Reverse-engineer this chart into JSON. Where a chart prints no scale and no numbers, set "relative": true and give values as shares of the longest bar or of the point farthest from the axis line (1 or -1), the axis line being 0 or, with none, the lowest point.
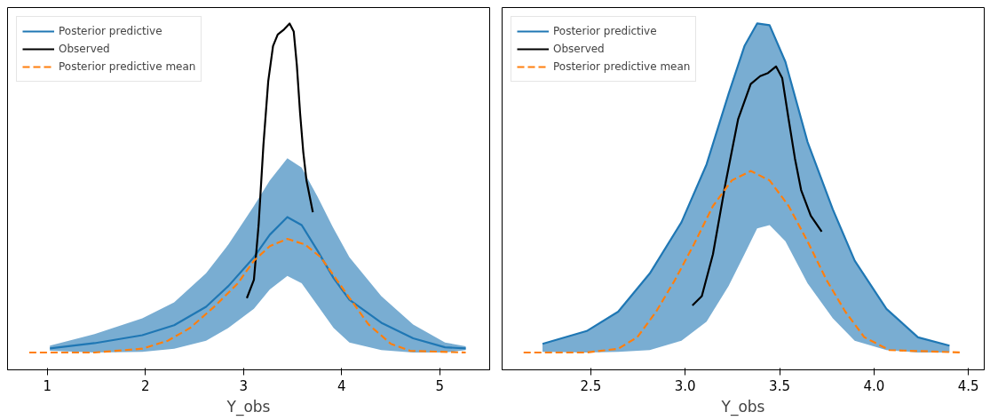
{
  "chart_data": [
    {
      "type": "line",
      "xlabel": "Y_obs",
      "relative": true,
      "xlim": [
        0.594,
        5.51
      ],
      "xticks": [
        1,
        2,
        3,
        4,
        5
      ],
      "tick_labels": "x",
      "grid": false,
      "legend": "top left",
      "marker": "none",
      "series": [
        {
          "name": "Posterior predictive",
          "color": "#1f77b4",
          "line_style": "solid",
          "x": [
            1.026,
            1.481,
            1.968,
            2.293,
            2.618,
            2.846,
            3.106,
            3.268,
            3.447,
            3.593,
            3.755,
            3.918,
            4.08,
            4.405,
            4.73,
            5.055,
            5.266
          ],
          "values": [
            0.062,
            0.077,
            0.1,
            0.129,
            0.182,
            0.242,
            0.325,
            0.39,
            0.441,
            0.418,
            0.344,
            0.265,
            0.202,
            0.136,
            0.091,
            0.065,
            0.062
          ],
          "upper": [
            0.07,
            0.103,
            0.149,
            0.195,
            0.279,
            0.362,
            0.473,
            0.547,
            0.611,
            0.584,
            0.5,
            0.408,
            0.325,
            0.213,
            0.131,
            0.079,
            0.068
          ],
          "lower": [
            0.055,
            0.05,
            0.052,
            0.061,
            0.084,
            0.121,
            0.176,
            0.232,
            0.271,
            0.25,
            0.186,
            0.121,
            0.079,
            0.057,
            0.05,
            0.05,
            0.057
          ]
        },
        {
          "name": "Observed",
          "color": "#000000",
          "line_style": "solid",
          "x": [
            3.034,
            3.106,
            3.154,
            3.203,
            3.252,
            3.301,
            3.349,
            3.414,
            3.47,
            3.512,
            3.544,
            3.577,
            3.609,
            3.642,
            3.707
          ],
          "values": [
            0.207,
            0.26,
            0.418,
            0.649,
            0.833,
            0.935,
            0.968,
            0.983,
            1.0,
            0.977,
            0.879,
            0.741,
            0.63,
            0.547,
            0.455
          ]
        },
        {
          "name": "Posterior predictive mean",
          "color": "#ff7f0e",
          "line_style": "dashed",
          "x": [
            0.815,
            1.481,
            1.968,
            2.228,
            2.456,
            2.716,
            2.943,
            3.106,
            3.268,
            3.447,
            3.625,
            3.788,
            3.95,
            4.113,
            4.275,
            4.503,
            4.698,
            5.266
          ],
          "values": [
            0.05,
            0.05,
            0.061,
            0.084,
            0.121,
            0.186,
            0.25,
            0.315,
            0.357,
            0.378,
            0.362,
            0.325,
            0.26,
            0.195,
            0.131,
            0.075,
            0.055,
            0.05
          ]
        }
      ]
    },
    {
      "type": "line",
      "xlabel": "Y_obs",
      "relative": true,
      "xlim": [
        2.03,
        4.584
      ],
      "xticks": [
        {
          "value": 2.5,
          "label": "2.5"
        },
        {
          "value": 3,
          "label": "3.0"
        },
        {
          "value": 3.5,
          "label": "3.5"
        },
        {
          "value": 4,
          "label": "4.0"
        },
        {
          "value": 4.5,
          "label": "4.5"
        }
      ],
      "tick_labels": "x",
      "grid": false,
      "legend": "top left",
      "marker": "none",
      "series": [
        {
          "name": "Posterior predictive",
          "color": "#1f77b4",
          "line_style": "solid",
          "x": [
            2.244,
            2.478,
            2.645,
            2.812,
            2.98,
            3.113,
            3.23,
            3.314,
            3.381,
            3.447,
            3.531,
            3.648,
            3.782,
            3.898,
            4.066,
            4.233,
            4.4
          ],
          "values": [
            0.075,
            0.112,
            0.168,
            0.278,
            0.426,
            0.593,
            0.797,
            0.935,
            1.0,
            0.995,
            0.889,
            0.658,
            0.463,
            0.315,
            0.176,
            0.094,
            0.07
          ],
          "upper": [
            0.075,
            0.112,
            0.168,
            0.278,
            0.426,
            0.593,
            0.797,
            0.935,
            1.0,
            0.995,
            0.889,
            0.658,
            0.463,
            0.315,
            0.176,
            0.094,
            0.07
          ],
          "lower": [
            0.052,
            0.05,
            0.052,
            0.057,
            0.084,
            0.139,
            0.242,
            0.334,
            0.408,
            0.418,
            0.371,
            0.25,
            0.149,
            0.084,
            0.057,
            0.05,
            0.05
          ]
        },
        {
          "name": "Observed",
          "color": "#000000",
          "line_style": "solid",
          "x": [
            3.038,
            3.088,
            3.147,
            3.213,
            3.28,
            3.347,
            3.397,
            3.439,
            3.481,
            3.514,
            3.548,
            3.581,
            3.614,
            3.665,
            3.723
          ],
          "values": [
            0.186,
            0.213,
            0.334,
            0.537,
            0.723,
            0.825,
            0.848,
            0.857,
            0.876,
            0.842,
            0.723,
            0.611,
            0.519,
            0.445,
            0.399
          ]
        },
        {
          "name": "Posterior predictive mean",
          "color": "#ff7f0e",
          "line_style": "dashed",
          "x": [
            2.144,
            2.478,
            2.645,
            2.746,
            2.846,
            2.946,
            3.046,
            3.147,
            3.247,
            3.347,
            3.447,
            3.548,
            3.648,
            3.748,
            3.848,
            3.949,
            4.082,
            4.467
          ],
          "values": [
            0.05,
            0.05,
            0.061,
            0.094,
            0.168,
            0.26,
            0.362,
            0.473,
            0.547,
            0.574,
            0.547,
            0.473,
            0.371,
            0.26,
            0.168,
            0.094,
            0.057,
            0.05
          ]
        }
      ]
    }
  ]
}
